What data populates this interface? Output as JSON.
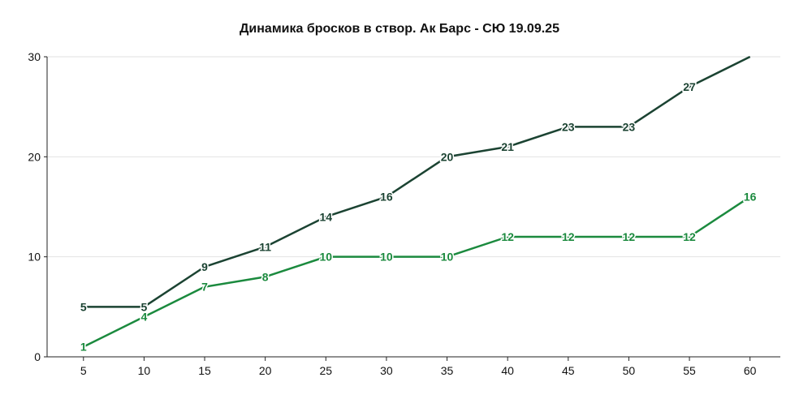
{
  "chart_data": {
    "type": "line",
    "title": "Динамика бросков в створ. Ак Барс - СЮ 19.09.25",
    "x": [
      5,
      10,
      15,
      20,
      25,
      30,
      35,
      40,
      45,
      50,
      55,
      60
    ],
    "xticks": [
      "5",
      "10",
      "15",
      "20",
      "25",
      "30",
      "35",
      "40",
      "45",
      "50",
      "55",
      "60"
    ],
    "yticks": [
      "0",
      "10",
      "20",
      "30"
    ],
    "xlim": [
      2,
      62.5
    ],
    "ylim": [
      0,
      30
    ],
    "grid": true,
    "legend": "none",
    "series": [
      {
        "color": "#1b4332",
        "values": [
          5,
          5,
          9,
          11,
          14,
          16,
          20,
          21,
          23,
          23,
          27,
          30
        ],
        "labels": [
          "5",
          "5",
          "9",
          "11",
          "14",
          "16",
          "20",
          "21",
          "23",
          "23",
          "27",
          ""
        ]
      },
      {
        "color": "#1b8a3e",
        "values": [
          1,
          4,
          7,
          8,
          10,
          10,
          10,
          12,
          12,
          12,
          12,
          16
        ],
        "labels": [
          "1",
          "4",
          "7",
          "8",
          "10",
          "10",
          "10",
          "12",
          "12",
          "12",
          "12",
          "16"
        ]
      }
    ]
  }
}
